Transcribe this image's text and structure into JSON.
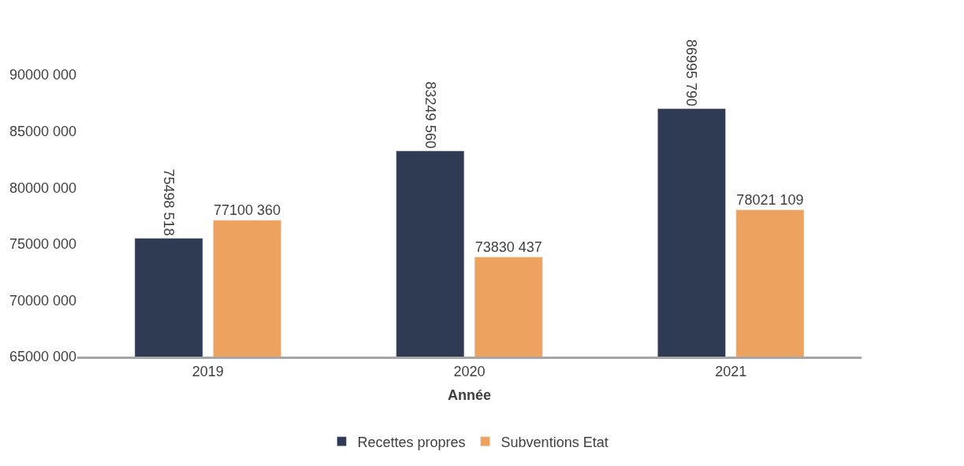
{
  "chart_data": {
    "type": "bar",
    "xlabel": "Année",
    "categories": [
      "2019",
      "2020",
      "2021"
    ],
    "series": [
      {
        "name": "Recettes propres",
        "color": "#2f3b52",
        "values": [
          75498518,
          83249560,
          86995790
        ],
        "value_labels": [
          "75498 518",
          "83249 560",
          "86995 790"
        ]
      },
      {
        "name": "Subventions Etat",
        "color": "#eda35f",
        "values": [
          77100360,
          73830437,
          78021109
        ],
        "value_labels": [
          "77100 360",
          "73830 437",
          "78021 109"
        ]
      }
    ],
    "ylim": [
      65000000,
      90000000
    ],
    "yticks": [
      {
        "value": 65000000,
        "label": "65000 000"
      },
      {
        "value": 70000000,
        "label": "70000 000"
      },
      {
        "value": 75000000,
        "label": "75000 000"
      },
      {
        "value": 80000000,
        "label": "80000 000"
      },
      {
        "value": 85000000,
        "label": "85000 000"
      },
      {
        "value": 90000000,
        "label": "90000 000"
      }
    ],
    "legend": "bottom"
  }
}
